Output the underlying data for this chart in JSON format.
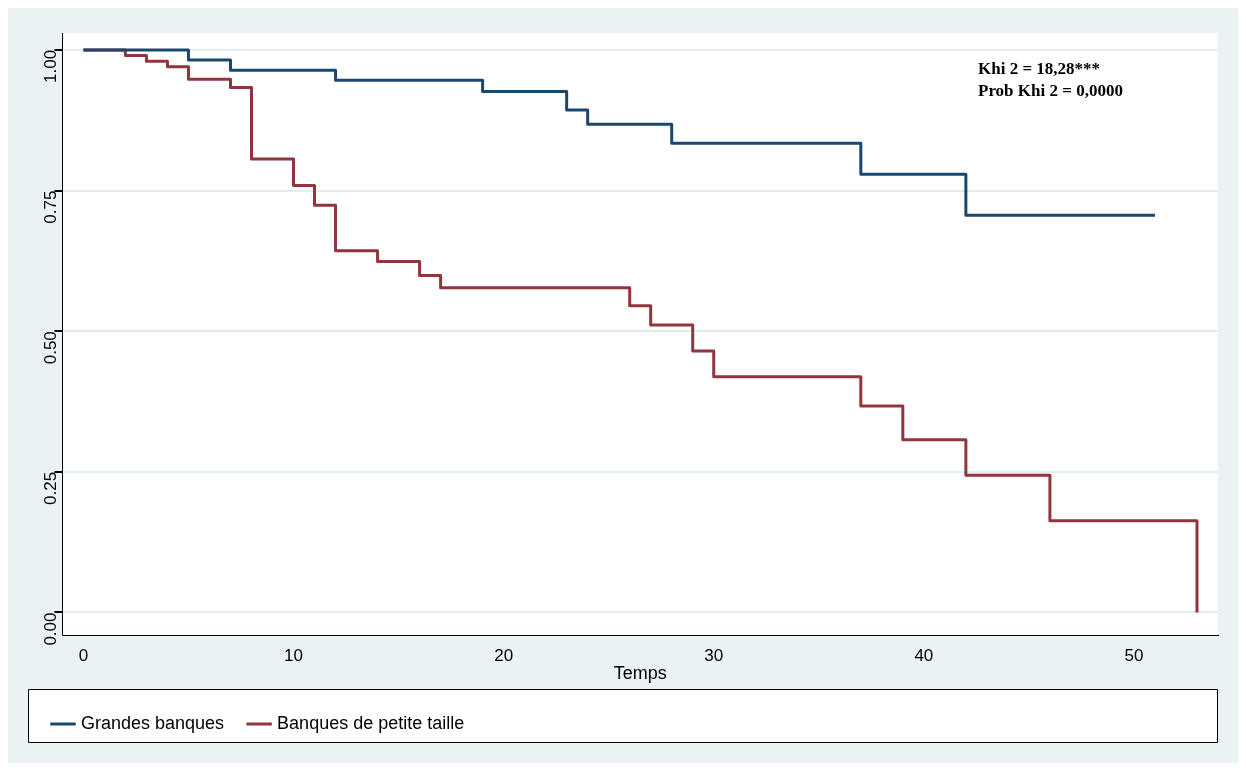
{
  "chart_data": {
    "type": "step",
    "xlabel": "Temps",
    "xlim": [
      -1,
      54
    ],
    "xticks": [
      0,
      10,
      20,
      30,
      40,
      50
    ],
    "ylim": [
      -0.04,
      1.03
    ],
    "yticks": [
      {
        "value": 0,
        "label": "0.00"
      },
      {
        "value": 0.25,
        "label": "0.25"
      },
      {
        "value": 0.5,
        "label": "0.50"
      },
      {
        "value": 0.75,
        "label": "0.75"
      },
      {
        "value": 1,
        "label": "1.00"
      }
    ],
    "grid": "y",
    "legend": "bottom",
    "annotations": [
      "Khi 2 = 18,28***",
      "Prob Khi 2 = 0,0000"
    ],
    "series": [
      {
        "name": "Grandes banques",
        "color": "#1a476f",
        "x": [
          0,
          5,
          7,
          12,
          19,
          23,
          24,
          28,
          37,
          42,
          51
        ],
        "values": [
          1,
          0.982,
          0.964,
          0.946,
          0.926,
          0.893,
          0.868,
          0.834,
          0.779,
          0.706,
          0.706
        ]
      },
      {
        "name": "Banques de petite taille",
        "color": "#90353b",
        "x": [
          0,
          2,
          3,
          4,
          5,
          7,
          8,
          10,
          11,
          12,
          14,
          16,
          17,
          26,
          27,
          29,
          30,
          37,
          39,
          42,
          46,
          53
        ],
        "values": [
          1,
          0.99,
          0.98,
          0.97,
          0.948,
          0.933,
          0.806,
          0.759,
          0.724,
          0.643,
          0.624,
          0.599,
          0.577,
          0.545,
          0.511,
          0.465,
          0.419,
          0.367,
          0.307,
          0.244,
          0.163,
          0
        ]
      }
    ]
  }
}
